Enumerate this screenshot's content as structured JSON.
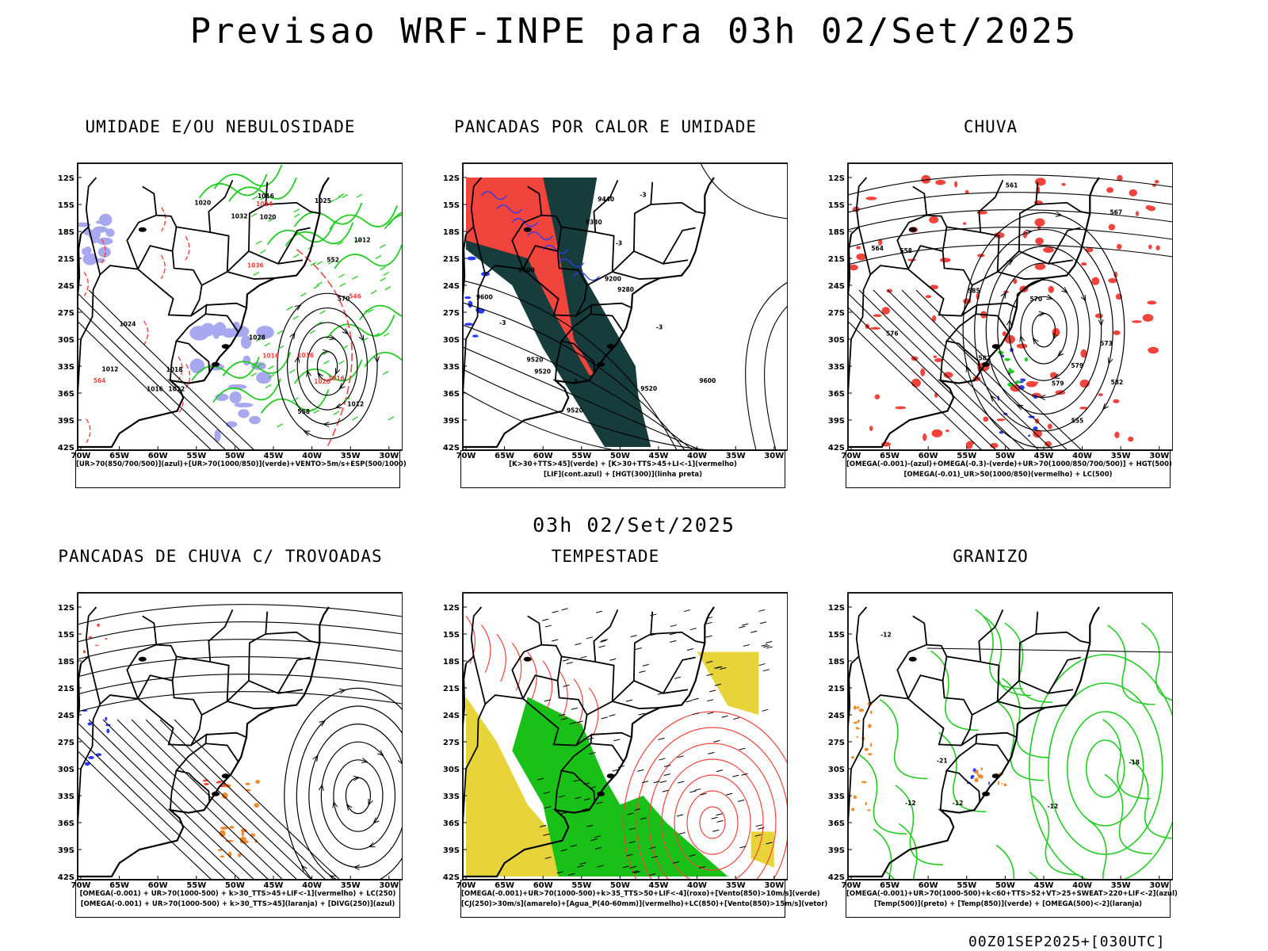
{
  "page": {
    "main_title": "Previsao WRF-INPE  para 03h 02/Set/2025",
    "mid_time": "03h 02/Set/2025",
    "footer_stamp": "00Z01SEP2025+[030UTC]"
  },
  "axes": {
    "lat_labels": [
      "12S",
      "15S",
      "18S",
      "21S",
      "24S",
      "27S",
      "30S",
      "33S",
      "36S",
      "39S",
      "42S"
    ],
    "lon_labels": [
      "70W",
      "65W",
      "60W",
      "55W",
      "50W",
      "45W",
      "40W",
      "35W",
      "30W"
    ]
  },
  "colors": {
    "red": "#f0443c",
    "green": "#22cc22",
    "blue": "#2a3cf0",
    "dark_teal": "#163c3c",
    "lavender": "#a8a8f0",
    "yellow": "#e6d43a",
    "orange": "#f08a2a",
    "bright_green": "#18c018"
  },
  "panels": [
    {
      "title": "UMIDADE E/OU NEBULOSIDADE",
      "legend": [
        "[UR>70(850/700/500)](azul)+[UR>70(1000/850)](verde)+VENTO>5m/s+ESP(500/1000)"
      ],
      "labels": [
        "1012",
        "1012",
        "1016",
        "1020",
        "1020",
        "1024",
        "1028",
        "1032",
        "1036",
        "1016",
        "1012",
        "1016",
        "1016",
        "1018",
        "1020",
        "1024",
        "1025",
        "1016",
        "1012",
        "570",
        "564",
        "558",
        "552",
        "546"
      ]
    },
    {
      "title": "PANCADAS POR CALOR E UMIDADE",
      "legend": [
        "[K>30+TTS>45](verde) + [K>30+TTS>45+LI<-1](vermelho)",
        "[LIF](cont.azul) + [HGT(300)](linha preta)"
      ],
      "labels": [
        "9600",
        "9600",
        "9520",
        "9520",
        "9520",
        "9440",
        "9380",
        "9280",
        "9200",
        "-3",
        "-3",
        "-3",
        "-3",
        "-3",
        "9600",
        "9520"
      ]
    },
    {
      "title": "CHUVA",
      "legend": [
        "[OMEGA(-0.001)-(azul)+OMEGA(-0.3)-(verde)+UR>70(1000/850/700/500)] + HGT(500)",
        "[OMEGA(-0.01)_UR>50(1000/850)(vermelho) + LC(500)"
      ],
      "labels": [
        "582",
        "585",
        "582",
        "579",
        "576",
        "573",
        "570",
        "567",
        "564",
        "561",
        "558",
        "555",
        "579"
      ]
    },
    {
      "title": "PANCADAS DE CHUVA C/ TROVOADAS",
      "legend": [
        "[OMEGA(-0.001) + UR>70(1000-500) + k>30_TTS>45+LIF<-1](vermelho) + LC(250)",
        "[OMEGA(-0.001) + UR>70(1000-500) + k>30_TTS>45](laranja) + [DIVG(250)](azul)"
      ],
      "labels": []
    },
    {
      "title": "TEMPESTADE",
      "legend": [
        "[OMEGA(-0.001)+UR>70(1000-500)+k>35_TTS>50+LIF<-4](roxo)+[Vento(850)>10m/s](verde)",
        "[CJ(250)>30m/s](amarelo)+[Agua_P(40-60mm)](vermelho)+LC(850)+[Vento(850)>15m/s](vetor)"
      ],
      "labels": []
    },
    {
      "title": "GRANIZO",
      "legend": [
        "[OMEGA(-0.001)+UR>70(1000-500)+k<60+TTS>52+VT>25+SWEAT>220+LIF<-2](azul)",
        "[Temp(500)](preto) + [Temp(850)](verde) + [OMEGA(500)<-2](laranja)"
      ],
      "labels": [
        "-12",
        "-12",
        "-12",
        "-21",
        "-12",
        "-18"
      ]
    }
  ]
}
